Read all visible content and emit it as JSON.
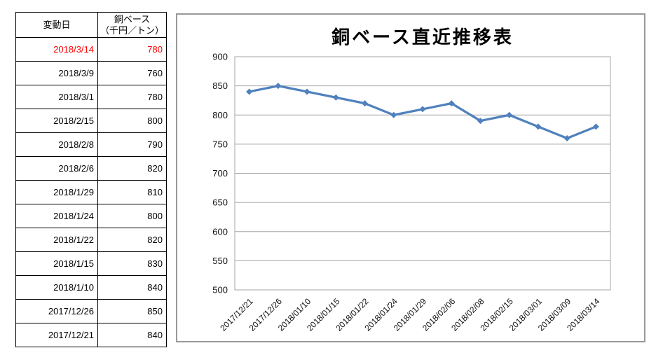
{
  "table": {
    "headers": {
      "date": "変動日",
      "value_line1": "銅ベース",
      "value_line2": "（千円／トン）"
    },
    "rows": [
      {
        "date": "2018/3/14",
        "value": "780",
        "highlight": true
      },
      {
        "date": "2018/3/9",
        "value": "760",
        "highlight": false
      },
      {
        "date": "2018/3/1",
        "value": "780",
        "highlight": false
      },
      {
        "date": "2018/2/15",
        "value": "800",
        "highlight": false
      },
      {
        "date": "2018/2/8",
        "value": "790",
        "highlight": false
      },
      {
        "date": "2018/2/6",
        "value": "820",
        "highlight": false
      },
      {
        "date": "2018/1/29",
        "value": "810",
        "highlight": false
      },
      {
        "date": "2018/1/24",
        "value": "800",
        "highlight": false
      },
      {
        "date": "2018/1/22",
        "value": "820",
        "highlight": false
      },
      {
        "date": "2018/1/15",
        "value": "830",
        "highlight": false
      },
      {
        "date": "2018/1/10",
        "value": "840",
        "highlight": false
      },
      {
        "date": "2017/12/26",
        "value": "850",
        "highlight": false
      },
      {
        "date": "2017/12/21",
        "value": "840",
        "highlight": false
      }
    ],
    "highlight_color": "#FF0000"
  },
  "chart_data": {
    "type": "line",
    "title": "銅ベース直近推移表",
    "x": [
      "2017/12/21",
      "2017/12/26",
      "2018/01/10",
      "2018/01/15",
      "2018/01/22",
      "2018/01/24",
      "2018/01/29",
      "2018/02/06",
      "2018/02/08",
      "2018/02/15",
      "2018/03/01",
      "2018/03/09",
      "2018/03/14"
    ],
    "series": [
      {
        "name": "銅ベース",
        "values": [
          840,
          850,
          840,
          830,
          820,
          800,
          810,
          820,
          790,
          800,
          780,
          760,
          780
        ]
      }
    ],
    "xlabel": "",
    "ylabel": "",
    "ylim": [
      500,
      900
    ],
    "ytick_step": 50,
    "grid": true,
    "legend": "none",
    "line_color": "#4F81BD",
    "marker": "diamond",
    "grid_color": "#A6A6A6",
    "axis_text_color": "#111111",
    "chart_border_color": "#999999"
  }
}
